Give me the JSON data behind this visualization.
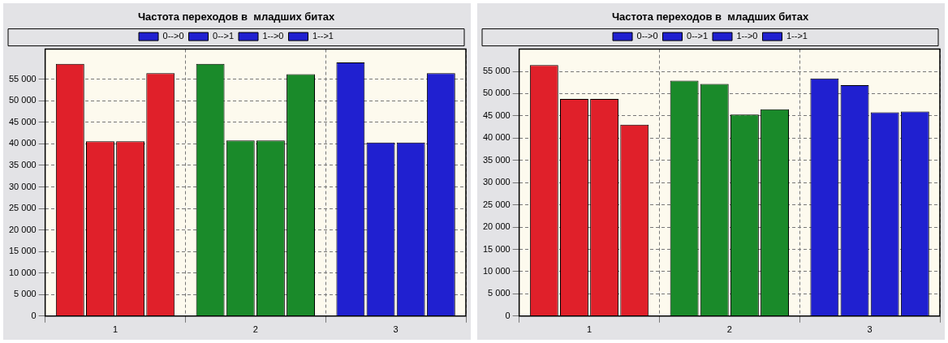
{
  "chart_data": [
    {
      "type": "bar",
      "title": "Частота переходов в  младших битах",
      "categories": [
        "1",
        "2",
        "3"
      ],
      "series": [
        {
          "name": "0-->0",
          "colors": [
            "#e0202a",
            "#1a8a2a",
            "#2020d0"
          ],
          "values": [
            58600,
            58600,
            58900
          ]
        },
        {
          "name": "0-->1",
          "colors": [
            "#e0202a",
            "#1a8a2a",
            "#2020d0"
          ],
          "values": [
            40600,
            40800,
            40300
          ]
        },
        {
          "name": "1-->0",
          "colors": [
            "#e0202a",
            "#1a8a2a",
            "#2020d0"
          ],
          "values": [
            40600,
            40800,
            40300
          ]
        },
        {
          "name": "1-->1",
          "colors": [
            "#e0202a",
            "#1a8a2a",
            "#2020d0"
          ],
          "values": [
            56400,
            56200,
            56400
          ]
        }
      ],
      "ylim": [
        0,
        62000
      ],
      "yticks": [
        0,
        {
          "value": 5000,
          "label": "5 000"
        },
        {
          "value": 10000,
          "label": "10 000"
        },
        {
          "value": 15000,
          "label": "15 000"
        },
        {
          "value": 20000,
          "label": "20 000"
        },
        {
          "value": 25000,
          "label": "25 000"
        },
        {
          "value": 30000,
          "label": "30 000"
        },
        {
          "value": 35000,
          "label": "35 000"
        },
        {
          "value": 40000,
          "label": "40 000"
        },
        {
          "value": 45000,
          "label": "45 000"
        },
        {
          "value": 50000,
          "label": "50 000"
        },
        {
          "value": 55000,
          "label": "55 000"
        }
      ],
      "grid": true,
      "legend": "top"
    },
    {
      "type": "bar",
      "title": "Частота переходов в  младших битах",
      "categories": [
        "1",
        "2",
        "3"
      ],
      "series": [
        {
          "name": "0-->0",
          "colors": [
            "#e0202a",
            "#1a8a2a",
            "#2020d0"
          ],
          "values": [
            56400,
            52900,
            53400
          ]
        },
        {
          "name": "0-->1",
          "colors": [
            "#e0202a",
            "#1a8a2a",
            "#2020d0"
          ],
          "values": [
            48800,
            52200,
            51900
          ]
        },
        {
          "name": "1-->0",
          "colors": [
            "#e0202a",
            "#1a8a2a",
            "#2020d0"
          ],
          "values": [
            48800,
            45300,
            45800
          ]
        },
        {
          "name": "1-->1",
          "colors": [
            "#e0202a",
            "#1a8a2a",
            "#2020d0"
          ],
          "values": [
            43000,
            46500,
            46000
          ]
        }
      ],
      "ylim": [
        0,
        60000
      ],
      "yticks": [
        0,
        {
          "value": 5000,
          "label": "5 000"
        },
        {
          "value": 10000,
          "label": "10 000"
        },
        {
          "value": 15000,
          "label": "15 000"
        },
        {
          "value": 20000,
          "label": "20 000"
        },
        {
          "value": 25000,
          "label": "25 000"
        },
        {
          "value": 30000,
          "label": "30 000"
        },
        {
          "value": 35000,
          "label": "35 000"
        },
        {
          "value": 40000,
          "label": "40 000"
        },
        {
          "value": 45000,
          "label": "45 000"
        },
        {
          "value": 50000,
          "label": "50 000"
        },
        {
          "value": 55000,
          "label": "55 000"
        }
      ],
      "grid": true,
      "legend": "top"
    }
  ]
}
